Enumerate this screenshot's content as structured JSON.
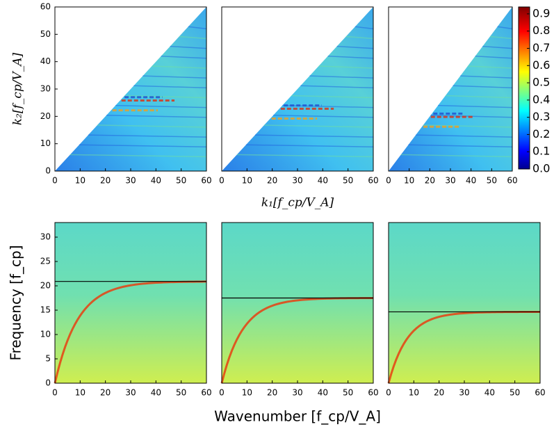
{
  "chart_data": [
    {
      "type": "heatmap",
      "xlim": [
        0,
        60
      ],
      "ylim": [
        0,
        60
      ],
      "xticks": [
        0,
        10,
        20,
        30,
        40,
        50,
        60
      ],
      "yticks": [
        0,
        10,
        20,
        30,
        40,
        50,
        60
      ],
      "ylabel": "k₂[f_cp/V_A]"
    },
    {
      "type": "heatmap",
      "xlim": [
        0,
        60
      ],
      "ylim": [
        0,
        60
      ],
      "xticks": [
        0,
        10,
        20,
        30,
        40,
        50,
        60
      ],
      "xlabel": "k₁[f_cp/V_A]"
    },
    {
      "type": "heatmap",
      "xlim": [
        0,
        60
      ],
      "ylim": [
        0,
        60
      ],
      "xticks": [
        0,
        10,
        20,
        30,
        40,
        50,
        60
      ],
      "colorbar": {
        "ylim": [
          0,
          0.94
        ],
        "yticks": [
          {
            "value": 0,
            "label": "0.0"
          },
          0.1,
          0.2,
          0.3,
          0.4,
          0.5,
          0.6,
          0.7,
          0.8,
          0.9
        ]
      }
    },
    {
      "type": "dispersion",
      "xlim": [
        0,
        60
      ],
      "ylim": [
        0,
        33
      ],
      "xticks": [
        0,
        10,
        20,
        30,
        40,
        50,
        60
      ],
      "yticks": [
        0,
        5,
        10,
        15,
        20,
        25,
        30
      ],
      "hline": 20.9,
      "ylabel": "Frequency [f_cp]"
    },
    {
      "type": "dispersion",
      "xlim": [
        0,
        60
      ],
      "ylim": [
        0,
        33
      ],
      "xticks": [
        0,
        10,
        20,
        30,
        40,
        50,
        60
      ],
      "hline": 17.5,
      "xlabel": "Wavenumber [f_cp/V_A]"
    },
    {
      "type": "dispersion",
      "xlim": [
        0,
        60
      ],
      "ylim": [
        0,
        33
      ],
      "xticks": [
        0,
        10,
        20,
        30,
        40,
        50,
        60
      ],
      "hline": 14.65
    }
  ]
}
